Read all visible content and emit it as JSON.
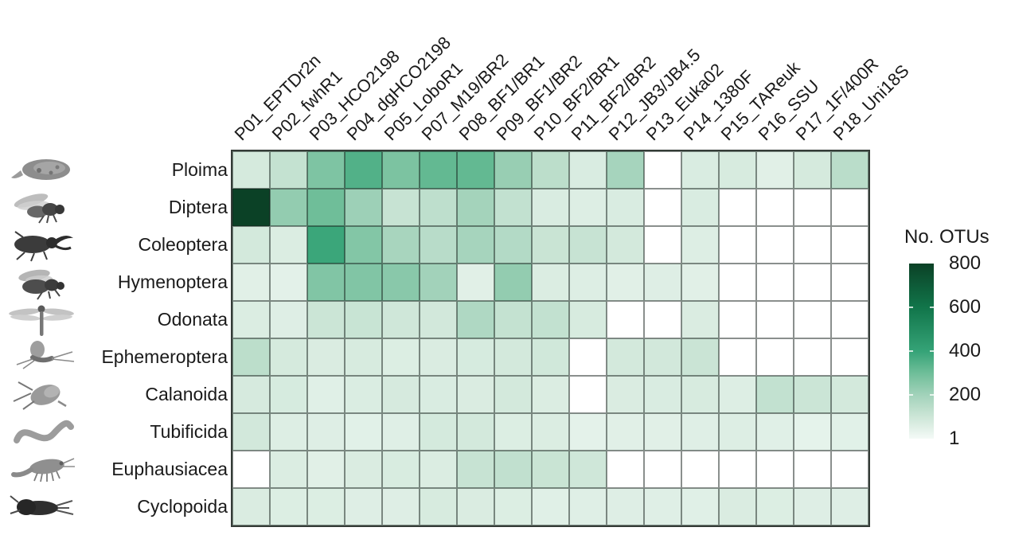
{
  "chart_data": {
    "type": "heatmap",
    "legend_title": "No. OTUs",
    "columns": [
      "P01_EPTDr2n",
      "P02_fwhR1",
      "P03_HCO2198",
      "P04_dgHCO2198",
      "P05_LoboR1",
      "P07_M19/BR2",
      "P08_BF1/BR1",
      "P09_BF1/BR2",
      "P10_BF2/BR1",
      "P11_BF2/BR2",
      "P12_JB3/JB4.5",
      "P13_Euka02",
      "P14_1380F",
      "P15_TAReuk",
      "P16_SSU",
      "P17_1F/400R",
      "P18_Uni18S"
    ],
    "rows": [
      "Ploima",
      "Diptera",
      "Coleoptera",
      "Hymenoptera",
      "Odonata",
      "Ephemeroptera",
      "Calanoida",
      "Tubificida",
      "Euphausiacea",
      "Cyclopoida"
    ],
    "row_icons": [
      "rotifer-icon",
      "fly-icon",
      "beetle-icon",
      "bee-icon",
      "dragonfly-icon",
      "mayfly-icon",
      "copepod-icon",
      "worm-icon",
      "krill-icon",
      "cyclopoid-icon"
    ],
    "values": [
      [
        80,
        120,
        270,
        350,
        275,
        320,
        320,
        220,
        140,
        70,
        190,
        null,
        70,
        75,
        50,
        80,
        145
      ],
      [
        800,
        230,
        300,
        210,
        115,
        135,
        195,
        125,
        70,
        60,
        70,
        null,
        70,
        null,
        null,
        null,
        null
      ],
      [
        85,
        65,
        390,
        260,
        185,
        150,
        190,
        160,
        110,
        115,
        85,
        null,
        60,
        null,
        null,
        null,
        null
      ],
      [
        50,
        45,
        265,
        265,
        250,
        200,
        50,
        230,
        65,
        60,
        50,
        58,
        50,
        null,
        null,
        null,
        null
      ],
      [
        65,
        58,
        105,
        112,
        95,
        88,
        170,
        120,
        125,
        75,
        null,
        null,
        68,
        null,
        null,
        null,
        null
      ],
      [
        140,
        80,
        68,
        75,
        62,
        68,
        76,
        85,
        92,
        null,
        84,
        88,
        108,
        null,
        null,
        null,
        null
      ],
      [
        78,
        76,
        52,
        66,
        78,
        70,
        68,
        84,
        65,
        null,
        68,
        70,
        75,
        60,
        125,
        105,
        84
      ],
      [
        88,
        60,
        58,
        48,
        55,
        82,
        84,
        62,
        65,
        42,
        50,
        50,
        55,
        60,
        52,
        38,
        48
      ],
      [
        null,
        65,
        50,
        68,
        72,
        65,
        115,
        128,
        110,
        95,
        null,
        null,
        null,
        null,
        null,
        null,
        null
      ],
      [
        68,
        62,
        62,
        58,
        58,
        74,
        68,
        62,
        52,
        55,
        58,
        55,
        52,
        68,
        62,
        58,
        58
      ]
    ],
    "value_scale": {
      "min": 1,
      "max": 800,
      "legend_ticks": [
        800,
        600,
        400,
        200,
        1
      ],
      "na_color": "#ffffff",
      "color_stops": [
        [
          1,
          "#f4faf7"
        ],
        [
          100,
          "#cde6d7"
        ],
        [
          200,
          "#a2d2ba"
        ],
        [
          300,
          "#6fbe99"
        ],
        [
          400,
          "#35a377"
        ],
        [
          600,
          "#11754a"
        ],
        [
          800,
          "#0b4126"
        ]
      ]
    },
    "layout": {
      "grid_on": true,
      "legend_position": "right",
      "column_label_rotation_deg": 45
    }
  }
}
